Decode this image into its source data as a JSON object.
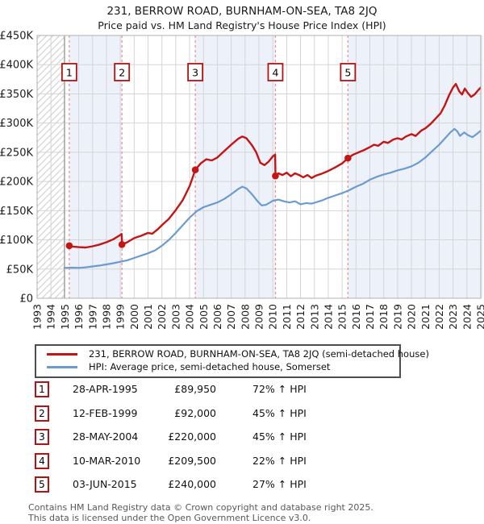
{
  "header": {
    "title": "231, BERROW ROAD, BURNHAM-ON-SEA, TA8 2JQ",
    "subtitle": "Price paid vs. HM Land Registry's House Price Index (HPI)"
  },
  "sales": [
    {
      "num": "1",
      "date": "28-APR-1995",
      "price": "£89,950",
      "hpi": "72% ↑ HPI"
    },
    {
      "num": "2",
      "date": "12-FEB-1999",
      "price": "£92,000",
      "hpi": "45% ↑ HPI"
    },
    {
      "num": "3",
      "date": "28-MAY-2004",
      "price": "£220,000",
      "hpi": "45% ↑ HPI"
    },
    {
      "num": "4",
      "date": "10-MAR-2010",
      "price": "£209,500",
      "hpi": "22% ↑ HPI"
    },
    {
      "num": "5",
      "date": "03-JUN-2015",
      "price": "£240,000",
      "hpi": "27% ↑ HPI"
    }
  ],
  "footer": {
    "line1": "Contains HM Land Registry data © Crown copyright and database right 2025.",
    "line2": "This data is licensed under the Open Government Licence v3.0."
  },
  "chart_data": {
    "type": "line",
    "title": "231, BERROW ROAD, BURNHAM-ON-SEA, TA8 2JQ — Price paid vs. HPI",
    "xlabel": "",
    "ylabel": "",
    "x_range": [
      1993,
      2025
    ],
    "y_range": [
      0,
      450000
    ],
    "grid": true,
    "legend_position": "below",
    "y_ticks": [
      "£0",
      "£50K",
      "£100K",
      "£150K",
      "£200K",
      "£250K",
      "£300K",
      "£350K",
      "£400K",
      "£450K"
    ],
    "x_ticks": [
      "1993",
      "1994",
      "1995",
      "1996",
      "1997",
      "1998",
      "1999",
      "2000",
      "2001",
      "2002",
      "2003",
      "2004",
      "2005",
      "2006",
      "2007",
      "2008",
      "2009",
      "2010",
      "2011",
      "2012",
      "2013",
      "2014",
      "2015",
      "2016",
      "2017",
      "2018",
      "2019",
      "2020",
      "2021",
      "2022",
      "2023",
      "2024",
      "2025"
    ],
    "colors": {
      "price_line": "#c41414",
      "hpi_line": "#6c9bd0",
      "band": "#edf1fa",
      "sale_line": "#f28b8b",
      "flag_border": "#b31313",
      "grid": "#d5d5d5",
      "hatch": "#cccccc",
      "data_start": "#999999",
      "border": "#b0b0b0"
    },
    "hatch_region": {
      "from": 1993,
      "to": 1994.97
    },
    "ownership_bands": [
      {
        "from": 1995.32,
        "to": 1999.12
      },
      {
        "from": 2004.41,
        "to": 2010.19
      },
      {
        "from": 2015.42,
        "to": 2025.15
      }
    ],
    "sale_points": [
      {
        "label": "1",
        "x": 1995.32,
        "y": 89.95
      },
      {
        "label": "2",
        "x": 1999.12,
        "y": 92
      },
      {
        "label": "3",
        "x": 2004.41,
        "y": 220
      },
      {
        "label": "4",
        "x": 2010.19,
        "y": 209.5
      },
      {
        "label": "5",
        "x": 2015.42,
        "y": 240
      }
    ],
    "series": [
      {
        "name": "231, BERROW ROAD, BURNHAM-ON-SEA, TA8 2JQ (semi-detached house)",
        "color": "#c41414",
        "width": 2.4,
        "unit": "£K",
        "points": [
          [
            1995.32,
            90
          ],
          [
            1995.6,
            88.5
          ],
          [
            1996,
            87.5
          ],
          [
            1996.5,
            87
          ],
          [
            1997,
            89
          ],
          [
            1997.5,
            92
          ],
          [
            1998,
            96
          ],
          [
            1998.5,
            101
          ],
          [
            1998.9,
            107
          ],
          [
            1999.1,
            110
          ],
          [
            1999.13,
            92
          ],
          [
            1999.5,
            96
          ],
          [
            2000,
            103
          ],
          [
            2000.5,
            107
          ],
          [
            2001,
            112
          ],
          [
            2001.3,
            110.5
          ],
          [
            2001.7,
            118
          ],
          [
            2002,
            125
          ],
          [
            2002.5,
            136
          ],
          [
            2003,
            151
          ],
          [
            2003.5,
            168
          ],
          [
            2004,
            192
          ],
          [
            2004.41,
            220
          ],
          [
            2004.8,
            231
          ],
          [
            2005.2,
            238
          ],
          [
            2005.6,
            236
          ],
          [
            2006,
            241
          ],
          [
            2006.5,
            252
          ],
          [
            2007,
            263
          ],
          [
            2007.5,
            273
          ],
          [
            2007.8,
            277
          ],
          [
            2008.1,
            274
          ],
          [
            2008.5,
            262
          ],
          [
            2008.8,
            250
          ],
          [
            2009.1,
            232
          ],
          [
            2009.4,
            228
          ],
          [
            2009.7,
            234
          ],
          [
            2010,
            243
          ],
          [
            2010.17,
            246
          ],
          [
            2010.19,
            209.5
          ],
          [
            2010.4,
            214
          ],
          [
            2010.7,
            211
          ],
          [
            2011,
            215
          ],
          [
            2011.3,
            209
          ],
          [
            2011.6,
            214
          ],
          [
            2011.9,
            211
          ],
          [
            2012.2,
            207
          ],
          [
            2012.5,
            211
          ],
          [
            2012.8,
            206
          ],
          [
            2013.1,
            210
          ],
          [
            2013.5,
            213
          ],
          [
            2014,
            218
          ],
          [
            2014.5,
            224
          ],
          [
            2015,
            231
          ],
          [
            2015.42,
            240
          ],
          [
            2015.8,
            246
          ],
          [
            2016.2,
            250
          ],
          [
            2016.6,
            254
          ],
          [
            2017,
            259
          ],
          [
            2017.3,
            263
          ],
          [
            2017.6,
            261
          ],
          [
            2018,
            268
          ],
          [
            2018.3,
            266
          ],
          [
            2018.7,
            272
          ],
          [
            2019,
            274
          ],
          [
            2019.3,
            272
          ],
          [
            2019.6,
            277
          ],
          [
            2020,
            281
          ],
          [
            2020.3,
            278
          ],
          [
            2020.7,
            287
          ],
          [
            2021,
            291
          ],
          [
            2021.4,
            299
          ],
          [
            2021.8,
            309
          ],
          [
            2022.1,
            317
          ],
          [
            2022.4,
            330
          ],
          [
            2022.7,
            347
          ],
          [
            2023,
            361
          ],
          [
            2023.2,
            367
          ],
          [
            2023.45,
            354
          ],
          [
            2023.65,
            349
          ],
          [
            2023.85,
            359
          ],
          [
            2024.05,
            352
          ],
          [
            2024.3,
            345
          ],
          [
            2024.55,
            349
          ],
          [
            2024.8,
            356
          ],
          [
            2025,
            361
          ],
          [
            2025.15,
            366
          ]
        ]
      },
      {
        "name": "HPI: Average price, semi-detached house, Somerset",
        "color": "#6c9bd0",
        "width": 2.2,
        "unit": "£K",
        "points": [
          [
            1994.97,
            52
          ],
          [
            1995.5,
            52.5
          ],
          [
            1996,
            52
          ],
          [
            1996.5,
            53
          ],
          [
            1997,
            54.5
          ],
          [
            1997.5,
            56
          ],
          [
            1998,
            58
          ],
          [
            1998.5,
            60
          ],
          [
            1999,
            62.5
          ],
          [
            1999.5,
            65
          ],
          [
            2000,
            69
          ],
          [
            2000.5,
            73
          ],
          [
            2001,
            77
          ],
          [
            2001.5,
            82
          ],
          [
            2002,
            90
          ],
          [
            2002.5,
            100
          ],
          [
            2003,
            112
          ],
          [
            2003.5,
            125
          ],
          [
            2004,
            138
          ],
          [
            2004.5,
            149
          ],
          [
            2005,
            156
          ],
          [
            2005.5,
            160
          ],
          [
            2006,
            164
          ],
          [
            2006.5,
            170
          ],
          [
            2007,
            178
          ],
          [
            2007.5,
            187
          ],
          [
            2007.8,
            191
          ],
          [
            2008.1,
            188
          ],
          [
            2008.5,
            178
          ],
          [
            2008.9,
            166
          ],
          [
            2009.2,
            159
          ],
          [
            2009.5,
            160
          ],
          [
            2009.8,
            164
          ],
          [
            2010,
            167
          ],
          [
            2010.4,
            169
          ],
          [
            2010.8,
            166
          ],
          [
            2011.2,
            164
          ],
          [
            2011.6,
            166
          ],
          [
            2012,
            161
          ],
          [
            2012.4,
            163
          ],
          [
            2012.8,
            162
          ],
          [
            2013.2,
            165
          ],
          [
            2013.6,
            168
          ],
          [
            2014,
            172
          ],
          [
            2014.5,
            176
          ],
          [
            2015,
            180
          ],
          [
            2015.5,
            185
          ],
          [
            2016,
            191
          ],
          [
            2016.5,
            196
          ],
          [
            2017,
            203
          ],
          [
            2017.5,
            208
          ],
          [
            2018,
            212
          ],
          [
            2018.5,
            215
          ],
          [
            2019,
            219
          ],
          [
            2019.5,
            222
          ],
          [
            2020,
            226
          ],
          [
            2020.5,
            232
          ],
          [
            2021,
            241
          ],
          [
            2021.5,
            252
          ],
          [
            2022,
            263
          ],
          [
            2022.5,
            276
          ],
          [
            2022.8,
            284
          ],
          [
            2023.1,
            290
          ],
          [
            2023.3,
            286
          ],
          [
            2023.5,
            278
          ],
          [
            2023.8,
            284
          ],
          [
            2024.1,
            279
          ],
          [
            2024.4,
            276
          ],
          [
            2024.7,
            281
          ],
          [
            2025,
            287
          ],
          [
            2025.15,
            290
          ]
        ]
      }
    ]
  }
}
